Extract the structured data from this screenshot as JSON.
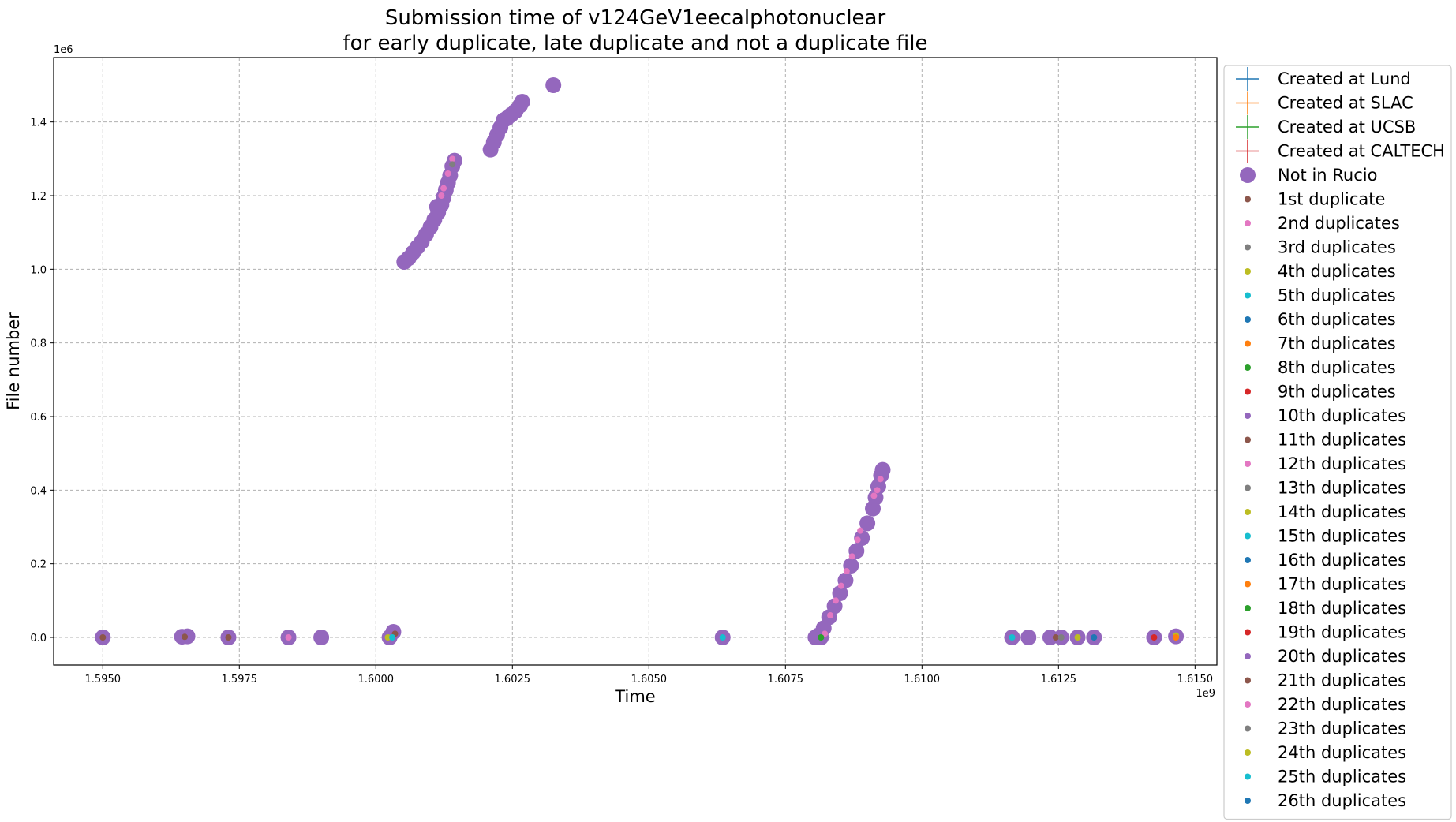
{
  "chart_data": {
    "type": "scatter",
    "title": [
      "Submission time of v124GeV1eecalphotonuclear",
      "for early duplicate, late duplicate and not a duplicate file"
    ],
    "xlabel": "Time",
    "ylabel": "File number",
    "x_offset_label": "1e9",
    "y_offset_label": "1e6",
    "xlim": [
      1.5941,
      1.6154
    ],
    "ylim": [
      -75000,
      1575000
    ],
    "x_ticks": [
      1.595,
      1.5975,
      1.6,
      1.6025,
      1.605,
      1.6075,
      1.61,
      1.6125,
      1.615
    ],
    "x_tick_labels": [
      "1.5950",
      "1.5975",
      "1.6000",
      "1.6025",
      "1.6050",
      "1.6075",
      "1.6100",
      "1.6125",
      "1.6150"
    ],
    "y_ticks": [
      0,
      200000,
      400000,
      600000,
      800000,
      1000000,
      1200000,
      1400000
    ],
    "y_tick_labels": [
      "0.0",
      "0.2",
      "0.4",
      "0.6",
      "0.8",
      "1.0",
      "1.2",
      "1.4"
    ],
    "grid": true,
    "legend_position": "outside-right",
    "legend": [
      {
        "label": "Created at Lund",
        "marker": "plus",
        "color": "#1f77b4"
      },
      {
        "label": "Created at SLAC",
        "marker": "plus",
        "color": "#ff7f0e"
      },
      {
        "label": "Created at UCSB",
        "marker": "plus",
        "color": "#2ca02c"
      },
      {
        "label": "Created at CALTECH",
        "marker": "plus",
        "color": "#d62728"
      },
      {
        "label": "Not in Rucio",
        "marker": "big-dot",
        "color": "#9467bd"
      },
      {
        "label": "1st duplicate",
        "marker": "dot",
        "color": "#8c564b"
      },
      {
        "label": "2nd duplicates",
        "marker": "dot",
        "color": "#e377c2"
      },
      {
        "label": "3rd duplicates",
        "marker": "dot",
        "color": "#7f7f7f"
      },
      {
        "label": "4th duplicates",
        "marker": "dot",
        "color": "#bcbd22"
      },
      {
        "label": "5th duplicates",
        "marker": "dot",
        "color": "#17becf"
      },
      {
        "label": "6th duplicates",
        "marker": "dot",
        "color": "#1f77b4"
      },
      {
        "label": "7th duplicates",
        "marker": "dot",
        "color": "#ff7f0e"
      },
      {
        "label": "8th duplicates",
        "marker": "dot",
        "color": "#2ca02c"
      },
      {
        "label": "9th duplicates",
        "marker": "dot",
        "color": "#d62728"
      },
      {
        "label": "10th duplicates",
        "marker": "dot",
        "color": "#9467bd"
      },
      {
        "label": "11th duplicates",
        "marker": "dot",
        "color": "#8c564b"
      },
      {
        "label": "12th duplicates",
        "marker": "dot",
        "color": "#e377c2"
      },
      {
        "label": "13th duplicates",
        "marker": "dot",
        "color": "#7f7f7f"
      },
      {
        "label": "14th duplicates",
        "marker": "dot",
        "color": "#bcbd22"
      },
      {
        "label": "15th duplicates",
        "marker": "dot",
        "color": "#17becf"
      },
      {
        "label": "16th duplicates",
        "marker": "dot",
        "color": "#1f77b4"
      },
      {
        "label": "17th duplicates",
        "marker": "dot",
        "color": "#ff7f0e"
      },
      {
        "label": "18th duplicates",
        "marker": "dot",
        "color": "#2ca02c"
      },
      {
        "label": "19th duplicates",
        "marker": "dot",
        "color": "#d62728"
      },
      {
        "label": "20th duplicates",
        "marker": "dot",
        "color": "#9467bd"
      },
      {
        "label": "21th duplicates",
        "marker": "dot",
        "color": "#8c564b"
      },
      {
        "label": "22th duplicates",
        "marker": "dot",
        "color": "#e377c2"
      },
      {
        "label": "23th duplicates",
        "marker": "dot",
        "color": "#7f7f7f"
      },
      {
        "label": "24th duplicates",
        "marker": "dot",
        "color": "#bcbd22"
      },
      {
        "label": "25th duplicates",
        "marker": "dot",
        "color": "#17becf"
      },
      {
        "label": "26th duplicates",
        "marker": "dot",
        "color": "#1f77b4"
      }
    ],
    "series": [
      {
        "name": "Not in Rucio",
        "color": "#9467bd",
        "points": [
          [
            1.595,
            0
          ],
          [
            1.59645,
            2000
          ],
          [
            1.59655,
            3000
          ],
          [
            1.5973,
            0
          ],
          [
            1.5984,
            0
          ],
          [
            1.599,
            0
          ],
          [
            1.60025,
            0
          ],
          [
            1.60032,
            15000
          ],
          [
            1.60635,
            0
          ],
          [
            1.60805,
            0
          ],
          [
            1.60815,
            0
          ],
          [
            1.61165,
            0
          ],
          [
            1.61195,
            0
          ],
          [
            1.61235,
            0
          ],
          [
            1.61255,
            0
          ],
          [
            1.61285,
            0
          ],
          [
            1.61315,
            0
          ],
          [
            1.61425,
            0
          ],
          [
            1.61465,
            3000
          ],
          [
            1.60052,
            1020000
          ],
          [
            1.6006,
            1030000
          ],
          [
            1.60068,
            1045000
          ],
          [
            1.60076,
            1060000
          ],
          [
            1.60084,
            1075000
          ],
          [
            1.60092,
            1095000
          ],
          [
            1.601,
            1115000
          ],
          [
            1.60107,
            1135000
          ],
          [
            1.60114,
            1155000
          ],
          [
            1.6012,
            1175000
          ],
          [
            1.60124,
            1195000
          ],
          [
            1.60128,
            1215000
          ],
          [
            1.60132,
            1235000
          ],
          [
            1.60136,
            1255000
          ],
          [
            1.6014,
            1280000
          ],
          [
            1.60144,
            1295000
          ],
          [
            1.60112,
            1170000
          ],
          [
            1.6021,
            1325000
          ],
          [
            1.60216,
            1345000
          ],
          [
            1.60222,
            1365000
          ],
          [
            1.60228,
            1385000
          ],
          [
            1.60234,
            1405000
          ],
          [
            1.6024,
            1410000
          ],
          [
            1.60248,
            1420000
          ],
          [
            1.60256,
            1430000
          ],
          [
            1.60264,
            1445000
          ],
          [
            1.60268,
            1455000
          ],
          [
            1.60325,
            1500000
          ],
          [
            1.6081,
            5000
          ],
          [
            1.6082,
            25000
          ],
          [
            1.6083,
            55000
          ],
          [
            1.6084,
            85000
          ],
          [
            1.6085,
            120000
          ],
          [
            1.6086,
            155000
          ],
          [
            1.6087,
            195000
          ],
          [
            1.6088,
            235000
          ],
          [
            1.6089,
            270000
          ],
          [
            1.609,
            310000
          ],
          [
            1.6091,
            350000
          ],
          [
            1.60915,
            380000
          ],
          [
            1.6092,
            410000
          ],
          [
            1.60925,
            440000
          ],
          [
            1.60928,
            455000
          ]
        ]
      },
      {
        "name": "2nd duplicates",
        "color": "#e377c2",
        "points": [
          [
            1.5984,
            0
          ],
          [
            1.6012,
            1200000
          ],
          [
            1.60124,
            1220000
          ],
          [
            1.60132,
            1260000
          ],
          [
            1.6014,
            1300000
          ],
          [
            1.60822,
            10000
          ],
          [
            1.60832,
            60000
          ],
          [
            1.60842,
            100000
          ],
          [
            1.60852,
            140000
          ],
          [
            1.60862,
            180000
          ],
          [
            1.60872,
            220000
          ],
          [
            1.60882,
            265000
          ],
          [
            1.60887,
            290000
          ],
          [
            1.60912,
            385000
          ],
          [
            1.60918,
            400000
          ],
          [
            1.60924,
            430000
          ]
        ]
      },
      {
        "name": "1st duplicate",
        "color": "#8c564b",
        "points": [
          [
            1.595,
            0
          ],
          [
            1.5965,
            1500
          ],
          [
            1.5973,
            0
          ],
          [
            1.60035,
            10000
          ],
          [
            1.61245,
            0
          ]
        ]
      },
      {
        "name": "3rd duplicates",
        "color": "#7f7f7f",
        "points": [
          [
            1.6014,
            1285000
          ],
          [
            1.61255,
            0
          ]
        ]
      },
      {
        "name": "4th duplicates",
        "color": "#bcbd22",
        "points": [
          [
            1.60022,
            0
          ],
          [
            1.61285,
            0
          ],
          [
            1.61465,
            5000
          ]
        ]
      },
      {
        "name": "5th duplicates",
        "color": "#17becf",
        "points": [
          [
            1.6003,
            0
          ],
          [
            1.60635,
            0
          ],
          [
            1.61165,
            0
          ]
        ]
      },
      {
        "name": "6th duplicates",
        "color": "#1f77b4",
        "points": [
          [
            1.61315,
            0
          ]
        ]
      },
      {
        "name": "7th duplicates",
        "color": "#ff7f0e",
        "points": [
          [
            1.61465,
            0
          ]
        ]
      },
      {
        "name": "8th duplicates",
        "color": "#2ca02c",
        "points": [
          [
            1.60815,
            0
          ]
        ]
      },
      {
        "name": "9th duplicates",
        "color": "#d62728",
        "points": [
          [
            1.61425,
            0
          ]
        ]
      }
    ]
  }
}
